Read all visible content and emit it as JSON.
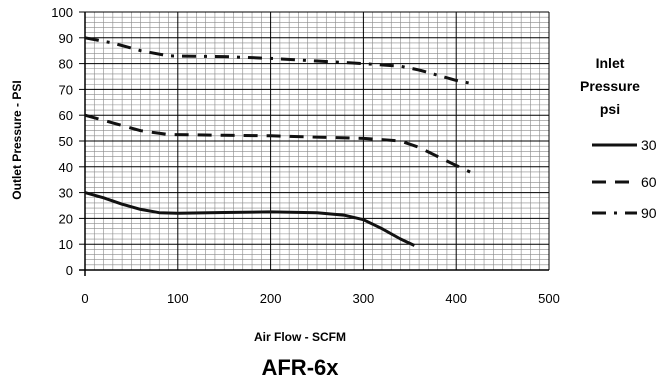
{
  "chart_data": {
    "type": "line",
    "title": "AFR-6x",
    "xlabel": "Air Flow - SCFM",
    "ylabel": "Outlet Pressure - PSI",
    "xlim": [
      0,
      500
    ],
    "ylim": [
      0,
      100
    ],
    "x_ticks": [
      "0",
      "100",
      "200",
      "300",
      "400",
      "500"
    ],
    "y_ticks": [
      "0",
      "10",
      "20",
      "30",
      "40",
      "50",
      "60",
      "70",
      "80",
      "90",
      "100"
    ],
    "grid": true,
    "legend": {
      "title_lines": [
        "Inlet",
        "Pressure",
        "psi"
      ],
      "placement": "right"
    },
    "series": [
      {
        "name": "30",
        "style": "solid",
        "x": [
          0,
          20,
          40,
          60,
          80,
          100,
          150,
          200,
          250,
          280,
          300,
          320,
          340,
          355
        ],
        "y": [
          30,
          28,
          25.5,
          23.5,
          22.2,
          22,
          22.3,
          22.5,
          22.2,
          21.2,
          19.5,
          16,
          12,
          9.5
        ]
      },
      {
        "name": "60",
        "style": "dash",
        "x": [
          0,
          30,
          60,
          90,
          150,
          200,
          250,
          300,
          340,
          360,
          380,
          400,
          415
        ],
        "y": [
          60,
          57,
          54,
          52.5,
          52.2,
          52,
          51.5,
          51,
          50,
          47.5,
          44,
          40.5,
          38
        ]
      },
      {
        "name": "90",
        "style": "dashdot",
        "x": [
          0,
          30,
          60,
          90,
          150,
          200,
          250,
          300,
          340,
          360,
          380,
          400,
          420
        ],
        "y": [
          90,
          88,
          85,
          83,
          82.7,
          82,
          81,
          80,
          79,
          77.5,
          75.5,
          73.5,
          72
        ]
      }
    ]
  }
}
